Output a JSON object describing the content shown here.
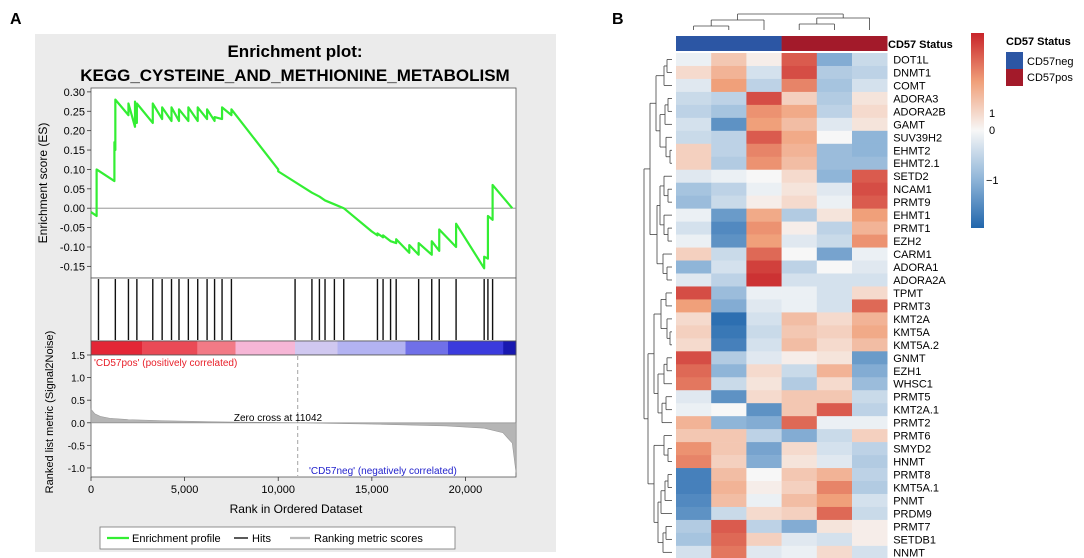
{
  "panel_a": {
    "label": "A",
    "title_line1": "Enrichment plot:",
    "title_line2": "KEGG_CYSTEINE_AND_METHIONINE_METABOLISM",
    "pos_label": "'CD57pos' (positively correlated)",
    "neg_label": "'CD57neg' (negatively correlated)",
    "zero_cross": "Zero cross at 11042",
    "legend": [
      "Enrichment profile",
      "Hits",
      "Ranking metric scores"
    ]
  },
  "panel_b": {
    "label": "B",
    "annotation_title": "CD57 Status",
    "legend_title": "CD57 Status",
    "legend_items": [
      {
        "label": "CD57neg",
        "color": "#2c56a4"
      },
      {
        "label": "CD57pos",
        "color": "#a31a2a"
      }
    ],
    "colorbar_ticks": [
      "1",
      "0",
      "−1"
    ]
  },
  "chart_data": [
    {
      "type": "line",
      "title": "Enrichment plot: KEGG_CYSTEINE_AND_METHIONINE_METABOLISM",
      "ylabel": "Enrichment score (ES)",
      "ylim": [
        -0.18,
        0.31
      ],
      "yticks": [
        0.3,
        0.25,
        0.2,
        0.15,
        0.1,
        0.05,
        0.0,
        -0.05,
        -0.1,
        -0.15
      ],
      "ytick_labels": [
        "0.30",
        "0.25",
        "0.20",
        "0.15",
        "0.10",
        "0.05",
        "0.00",
        "-0.05",
        "-0.10",
        "-0.15"
      ],
      "series": [
        {
          "name": "Enrichment profile",
          "color": "#33ee33",
          "x": [
            0,
            300,
            300,
            1250,
            1250,
            1300,
            1300,
            2000,
            2000,
            2350,
            2350,
            2450,
            2450,
            3300,
            3300,
            3800,
            3800,
            4300,
            4300,
            4700,
            4700,
            5200,
            5200,
            5700,
            5700,
            6200,
            6200,
            6600,
            6600,
            7000,
            7000,
            7500,
            7500,
            10000,
            10000,
            11800,
            11800,
            12200,
            12200,
            12500,
            12500,
            13000,
            13000,
            13500,
            13500,
            15000,
            15000,
            15300,
            15300,
            15600,
            15600,
            16000,
            16000,
            16300,
            16300,
            17000,
            17000,
            17500,
            17500,
            18200,
            18200,
            18600,
            18600,
            19500,
            19500,
            21000,
            21000,
            21200,
            21200,
            21450,
            21450,
            22500
          ],
          "y": [
            -0.01,
            -0.02,
            0.1,
            0.07,
            0.17,
            0.15,
            0.28,
            0.24,
            0.27,
            0.21,
            0.275,
            0.22,
            0.27,
            0.22,
            0.27,
            0.23,
            0.26,
            0.225,
            0.26,
            0.225,
            0.255,
            0.225,
            0.26,
            0.225,
            0.26,
            0.23,
            0.255,
            0.225,
            0.235,
            0.23,
            0.26,
            0.24,
            0.255,
            0.1,
            0.095,
            0.04,
            0.04,
            0.03,
            0.03,
            0.02,
            0.02,
            0.01,
            0.01,
            0.0,
            0.0,
            -0.06,
            -0.06,
            -0.07,
            -0.065,
            -0.075,
            -0.07,
            -0.085,
            -0.085,
            -0.09,
            -0.08,
            -0.115,
            -0.095,
            -0.12,
            -0.09,
            -0.12,
            -0.085,
            -0.11,
            -0.055,
            -0.1,
            -0.04,
            -0.155,
            -0.125,
            -0.13,
            -0.02,
            -0.03,
            0.06,
            0.0
          ]
        }
      ]
    },
    {
      "type": "bar",
      "title": "Hits",
      "x": [
        400,
        1300,
        2000,
        2450,
        3300,
        3800,
        4300,
        4700,
        5200,
        5700,
        6200,
        6600,
        7000,
        7500,
        10900,
        11800,
        12200,
        12500,
        13000,
        13500,
        15300,
        15600,
        16000,
        16300,
        17500,
        18200,
        18600,
        19500,
        21000,
        21200,
        21450
      ],
      "xlim": [
        0,
        22700
      ]
    },
    {
      "type": "area",
      "ylabel": "Ranked list metric (Signal2Noise)",
      "xlabel": "Rank in Ordered Dataset",
      "xlim": [
        0,
        22700
      ],
      "ylim": [
        -1.2,
        1.5
      ],
      "xticks": [
        0,
        5000,
        10000,
        15000,
        20000
      ],
      "xtick_labels": [
        "0",
        "5,000",
        "10,000",
        "15,000",
        "20,000"
      ],
      "yticks": [
        1.5,
        1.0,
        0.5,
        0.0,
        -0.5,
        -1.0
      ],
      "ytick_labels": [
        "1.5",
        "1.0",
        "0.5",
        "0.0",
        "-0.5",
        "-1.0"
      ],
      "zero_cross": 11042,
      "x": [
        0,
        200,
        500,
        1000,
        2000,
        4000,
        7000,
        11042,
        15000,
        19000,
        21000,
        22000,
        22500,
        22700
      ],
      "y": [
        0.3,
        0.2,
        0.14,
        0.1,
        0.07,
        0.045,
        0.02,
        0.0,
        -0.03,
        -0.07,
        -0.12,
        -0.22,
        -0.45,
        -1.1
      ]
    },
    {
      "type": "heatmap",
      "title": "CD57 Status",
      "columns": [
        "CD57neg",
        "CD57neg",
        "CD57neg",
        "CD57pos",
        "CD57pos",
        "CD57pos"
      ],
      "rows": [
        "DOT1L",
        "DNMT1",
        "COMT",
        "ADORA3",
        "ADORA2B",
        "GAMT",
        "SUV39H2",
        "EHMT2",
        "EHMT2.1",
        "SETD2",
        "NCAM1",
        "PRMT9",
        "EHMT1",
        "PRMT1",
        "EZH2",
        "CARM1",
        "ADORA1",
        "ADORA2A",
        "TPMT",
        "PRMT3",
        "KMT2A",
        "KMT5A",
        "KMT5A.2",
        "GNMT",
        "EZH1",
        "WHSC1",
        "PRMT5",
        "KMT2A.1",
        "PRMT2",
        "PRMT6",
        "SMYD2",
        "HNMT",
        "PRMT8",
        "KMT5A.1",
        "PNMT",
        "PRDM9",
        "PRMT7",
        "SETDB1",
        "NNMT"
      ],
      "values": [
        [
          -0.1,
          0.5,
          0.1,
          1.4,
          -1.0,
          -0.4
        ],
        [
          0.3,
          0.7,
          -0.3,
          1.5,
          -0.6,
          -0.5
        ],
        [
          -0.2,
          0.9,
          -0.5,
          1.1,
          -0.7,
          -0.3
        ],
        [
          -0.4,
          -0.5,
          1.5,
          0.4,
          -0.6,
          0.2
        ],
        [
          -0.5,
          -0.7,
          1.0,
          0.8,
          -0.5,
          0.3
        ],
        [
          -0.3,
          -1.3,
          0.9,
          0.6,
          -0.2,
          0.2
        ],
        [
          -0.4,
          -0.5,
          1.4,
          0.8,
          0.0,
          -0.9
        ],
        [
          0.4,
          -0.5,
          1.1,
          0.7,
          -0.8,
          -0.9
        ],
        [
          0.4,
          -0.6,
          1.0,
          0.6,
          -0.8,
          -0.8
        ],
        [
          -0.2,
          -0.1,
          0.0,
          0.3,
          -0.9,
          1.4
        ],
        [
          -0.7,
          -0.5,
          -0.1,
          0.2,
          -0.2,
          1.5
        ],
        [
          -0.8,
          -0.4,
          0.1,
          0.3,
          -0.1,
          1.4
        ],
        [
          -0.1,
          -1.2,
          0.8,
          -0.6,
          0.2,
          0.9
        ],
        [
          -0.3,
          -1.4,
          1.0,
          0.1,
          -0.5,
          0.7
        ],
        [
          -0.1,
          -1.3,
          0.9,
          -0.2,
          -0.4,
          1.0
        ],
        [
          0.4,
          -0.4,
          1.3,
          0.0,
          -1.1,
          -0.1
        ],
        [
          -0.9,
          -0.3,
          1.6,
          -0.5,
          0.0,
          -0.2
        ],
        [
          -0.2,
          -0.5,
          1.7,
          -0.3,
          -0.3,
          -0.3
        ],
        [
          1.5,
          -0.8,
          -0.1,
          -0.1,
          -0.3,
          0.3
        ],
        [
          0.9,
          -1.0,
          -0.2,
          -0.1,
          -0.3,
          1.3
        ],
        [
          0.3,
          -1.7,
          -0.3,
          0.6,
          0.3,
          0.7
        ],
        [
          0.4,
          -1.6,
          -0.4,
          0.5,
          0.4,
          0.8
        ],
        [
          0.3,
          -1.5,
          -0.3,
          0.6,
          0.3,
          0.6
        ],
        [
          1.5,
          -0.6,
          -0.2,
          0.1,
          0.2,
          -1.2
        ],
        [
          1.3,
          -0.9,
          0.3,
          -0.4,
          0.7,
          -1.0
        ],
        [
          1.2,
          -0.4,
          0.2,
          -0.6,
          0.3,
          -0.8
        ],
        [
          -0.2,
          -1.3,
          0.3,
          0.5,
          0.5,
          -0.4
        ],
        [
          -0.1,
          0.0,
          -1.3,
          0.5,
          1.4,
          -0.5
        ],
        [
          0.7,
          -0.9,
          -1.0,
          1.3,
          -0.1,
          -0.1
        ],
        [
          0.5,
          0.5,
          -0.5,
          -1.0,
          -0.4,
          0.4
        ],
        [
          1.0,
          0.5,
          -1.1,
          0.3,
          -0.3,
          -0.5
        ],
        [
          1.1,
          0.4,
          -1.0,
          0.2,
          -0.2,
          -0.6
        ],
        [
          -1.5,
          0.6,
          0.0,
          0.5,
          0.7,
          -0.5
        ],
        [
          -1.5,
          0.7,
          0.1,
          0.4,
          1.1,
          -0.6
        ],
        [
          -1.4,
          0.6,
          -0.1,
          0.6,
          0.9,
          -0.3
        ],
        [
          -1.3,
          -0.4,
          0.3,
          0.4,
          1.3,
          -0.4
        ],
        [
          -0.6,
          1.4,
          -0.5,
          -1.0,
          0.2,
          0.1
        ],
        [
          -0.7,
          1.3,
          0.4,
          -0.2,
          -0.3,
          0.1
        ],
        [
          -0.3,
          1.2,
          -0.2,
          -0.1,
          0.3,
          -0.3
        ]
      ],
      "vmin": -1.8,
      "vmax": 1.8
    }
  ]
}
